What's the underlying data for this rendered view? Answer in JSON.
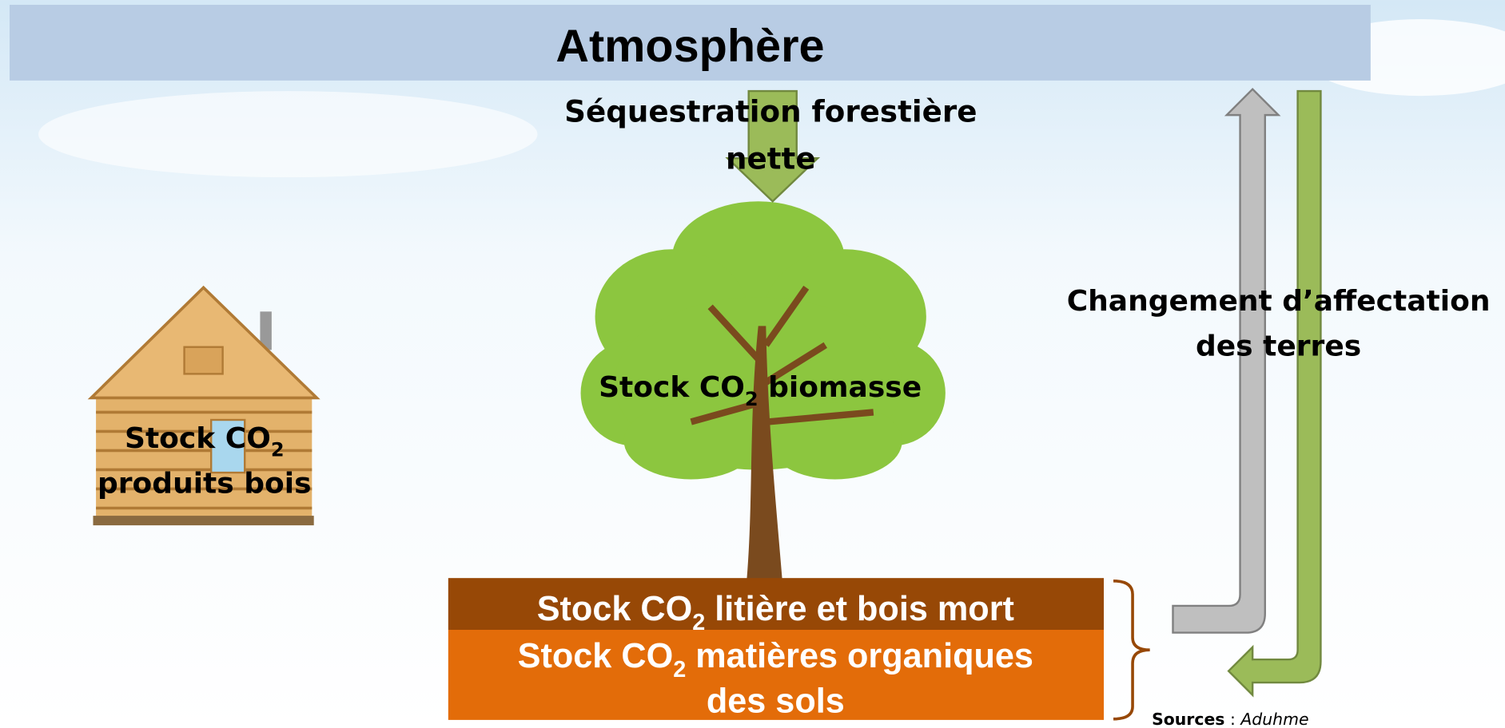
{
  "atmosphere": "Atmosphère",
  "sequestration": {
    "line1": "Séquestration forestière",
    "line2": "nette"
  },
  "biomass": {
    "before": "Stock CO",
    "sub": "2",
    "after": " biomasse"
  },
  "wood_products": {
    "before": "Stock CO",
    "sub": "2",
    "line2": "produits bois"
  },
  "land_use": {
    "line1": "Changement d’affectation",
    "line2": "des terres"
  },
  "litter": {
    "before": "Stock CO",
    "sub": "2",
    "after": " litière et bois mort"
  },
  "soil": {
    "before": "Stock CO",
    "sub": "2",
    "after": " matières organiques",
    "line2": "des sols"
  },
  "sources": {
    "label": "Sources",
    "sep": " : ",
    "name": "Aduhme"
  }
}
